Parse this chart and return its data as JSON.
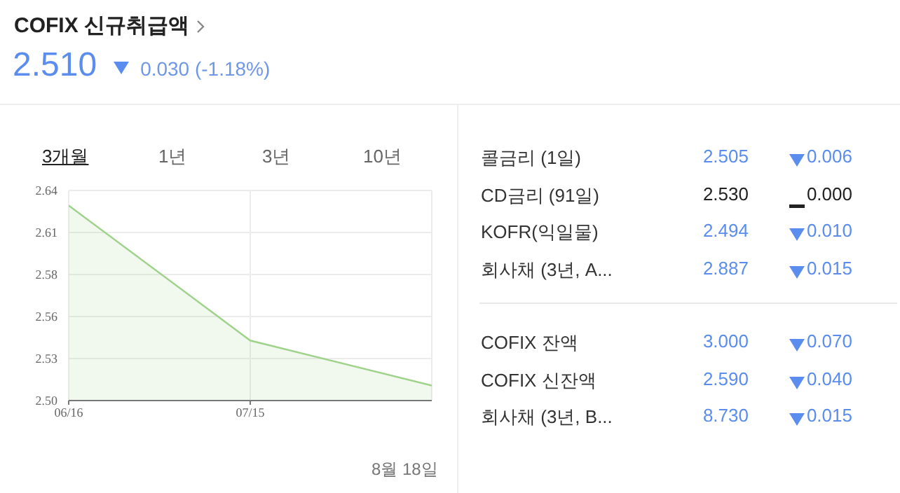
{
  "chart_data": [
    {
      "type": "area",
      "title": "COFIX 신규취급액",
      "annotations": [
        "2.510",
        "0.030 (-1.18%)",
        "3개월",
        "1년",
        "3년",
        "10년",
        "8월 18일"
      ],
      "x": [
        "--06-16",
        "--07-15",
        "--08-13"
      ],
      "series": [
        {
          "color": "#9fd28a",
          "values": [
            2.63,
            2.54,
            2.51
          ]
        }
      ],
      "xlim": [
        "--06-16",
        "--08-13"
      ],
      "xticks": [
        {
          "value": "--06-16",
          "label": "06/16"
        },
        {
          "value": "--07-15",
          "label": "07/15"
        }
      ],
      "ylim": [
        2.5,
        2.64
      ],
      "yticks": [
        {
          "value": 2.5,
          "label": "2.50"
        },
        {
          "value": 2.528,
          "label": "2.53"
        },
        {
          "value": 2.556,
          "label": "2.56"
        },
        {
          "value": 2.584,
          "label": "2.58"
        },
        {
          "value": 2.612,
          "label": "2.61"
        },
        {
          "value": 2.64,
          "label": "2.64"
        }
      ],
      "grid": true
    },
    {
      "type": "other",
      "categories": [
        "콜금리 (1일)",
        "CD금리 (91일)",
        "KOFR(익일물)",
        "회사채 (3년, A..."
      ],
      "series": [
        {
          "values": [
            2.505,
            2.53,
            2.494,
            2.887
          ],
          "value_labels": [
            "2.505",
            "2.530",
            "2.494",
            "2.887"
          ],
          "colors": [
            "#5b8def",
            "#222222",
            "#5b8def",
            "#5b8def"
          ]
        },
        {
          "values": [
            0.006,
            0,
            0.01,
            0.015
          ],
          "value_labels": [
            "0.006",
            "0.000",
            "0.010",
            "0.015"
          ],
          "colors": [
            "#5b8def",
            "#222222",
            "#5b8def",
            "#5b8def"
          ]
        }
      ]
    },
    {
      "type": "other",
      "categories": [
        "COFIX 잔액",
        "COFIX 신잔액",
        "회사채 (3년, B..."
      ],
      "series": [
        {
          "values": [
            3.0,
            2.59,
            8.73
          ],
          "value_labels": [
            "3.000",
            "2.590",
            "8.730"
          ],
          "colors": [
            "#5b8def",
            "#5b8def",
            "#5b8def"
          ]
        },
        {
          "values": [
            0.07,
            0.04,
            0.015
          ],
          "value_labels": [
            "0.070",
            "0.040",
            "0.015"
          ],
          "colors": [
            "#5b8def",
            "#5b8def",
            "#5b8def"
          ]
        }
      ]
    }
  ]
}
